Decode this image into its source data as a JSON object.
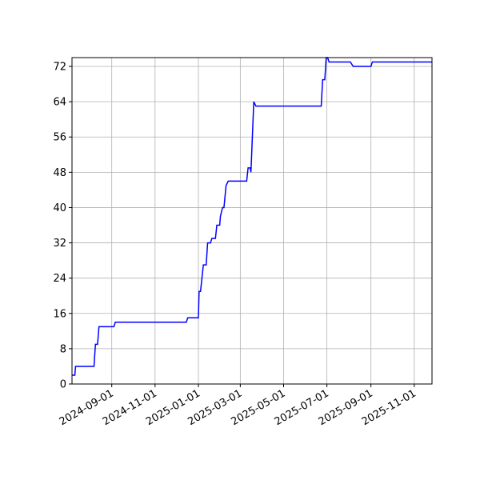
{
  "chart_data": {
    "type": "line",
    "x": [
      "2024-07-07",
      "2024-07-11",
      "2024-07-12",
      "2024-08-07",
      "2024-08-09",
      "2024-08-12",
      "2024-08-14",
      "2024-09-04",
      "2024-09-06",
      "2024-12-15",
      "2024-12-17",
      "2025-01-01",
      "2025-01-02",
      "2025-01-04",
      "2025-01-08",
      "2025-01-12",
      "2025-01-14",
      "2025-01-18",
      "2025-01-20",
      "2025-01-25",
      "2025-01-27",
      "2025-01-31",
      "2025-02-01",
      "2025-02-04",
      "2025-02-06",
      "2025-02-09",
      "2025-02-12",
      "2025-03-10",
      "2025-03-12",
      "2025-03-15",
      "2025-03-16",
      "2025-03-20",
      "2025-03-23",
      "2025-06-23",
      "2025-06-25",
      "2025-06-28",
      "2025-06-30",
      "2025-07-02",
      "2025-07-04",
      "2025-08-03",
      "2025-08-07",
      "2025-09-01",
      "2025-09-03",
      "2025-11-26"
    ],
    "series": [
      {
        "color": "#0000ff",
        "values": [
          2,
          2,
          4,
          4,
          9,
          9,
          13,
          13,
          14,
          14,
          15,
          15,
          21,
          21,
          27,
          27,
          32,
          32,
          33,
          33,
          36,
          36,
          38,
          40,
          40,
          45,
          46,
          46,
          49,
          49,
          48,
          64,
          63,
          63,
          69,
          69,
          74,
          74,
          73,
          73,
          72,
          72,
          73,
          73
        ]
      }
    ],
    "xlim": [
      "2024-07-07",
      "2025-11-26"
    ],
    "xticks": [
      "2024-09-01",
      "2024-11-01",
      "2025-01-01",
      "2025-03-01",
      "2025-05-01",
      "2025-07-01",
      "2025-09-01",
      "2025-11-01"
    ],
    "ylim": [
      0,
      74
    ],
    "yticks": [
      0,
      8,
      16,
      24,
      32,
      40,
      48,
      56,
      64,
      72
    ],
    "grid": true
  }
}
